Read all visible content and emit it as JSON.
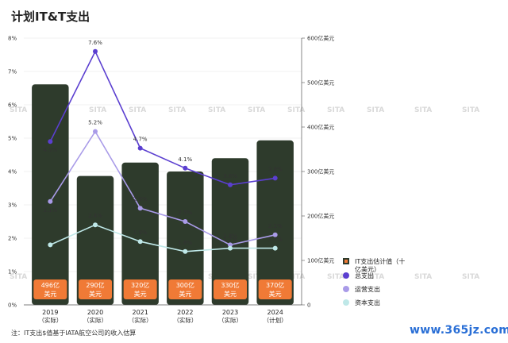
{
  "title": "计划IT&T支出",
  "note": "注：IT支出$值基于IATA航空公司的收入估算",
  "watermark": "www.365jz.com",
  "background_mark": "SITA",
  "colors": {
    "bar": "#2e3b2c",
    "bar_label_bg": "#f07a36",
    "total": "#5b3fd0",
    "operating": "#a99be8",
    "capital": "#bfe8e8"
  },
  "chart_data": {
    "type": "bar+line",
    "categories": [
      "2019",
      "2020",
      "2021",
      "2022",
      "2023",
      "2024"
    ],
    "category_sub": [
      "（实际）",
      "（实际）",
      "（实际）",
      "（实际）",
      "（实际）",
      "（计划）"
    ],
    "left_axis": {
      "ylim": [
        0,
        8
      ],
      "ticks": [
        "0%",
        "1%",
        "2%",
        "3%",
        "4%",
        "5%",
        "6%",
        "7%",
        "8%"
      ]
    },
    "right_axis": {
      "ylim": [
        0,
        600
      ],
      "ticks": [
        "0",
        "100亿美元",
        "200亿美元",
        "300亿美元",
        "400亿美元",
        "500亿美元",
        "600亿美元"
      ]
    },
    "bars": {
      "name": "IT支出估计值（十亿美元）",
      "values": [
        49.6,
        29.0,
        32.0,
        30.0,
        33.0,
        37.0
      ],
      "labels": [
        "496亿美元",
        "290亿美元",
        "320亿美元",
        "300亿美元",
        "330亿美元",
        "370亿美元"
      ]
    },
    "series": [
      {
        "name": "总支出",
        "values": [
          4.9,
          7.6,
          4.7,
          4.1,
          3.6,
          3.8
        ],
        "labels": [
          "4.9%",
          "7.6%",
          "4.7%",
          "4.1%",
          "3.6%",
          "3.8%"
        ]
      },
      {
        "name": "运营支出",
        "values": [
          3.1,
          5.2,
          2.9,
          2.5,
          1.8,
          2.1
        ],
        "labels": [
          "3.1%",
          "5.2%",
          "2.9%",
          "2.5%",
          "1.8%",
          "2.1%"
        ]
      },
      {
        "name": "资本支出",
        "values": [
          1.8,
          2.4,
          1.9,
          1.6,
          1.7,
          1.7
        ],
        "labels": [
          "",
          "2.4%",
          "1.9%",
          "1.6%",
          "1.7%",
          "1.7%"
        ]
      }
    ],
    "legend_position": "right"
  }
}
